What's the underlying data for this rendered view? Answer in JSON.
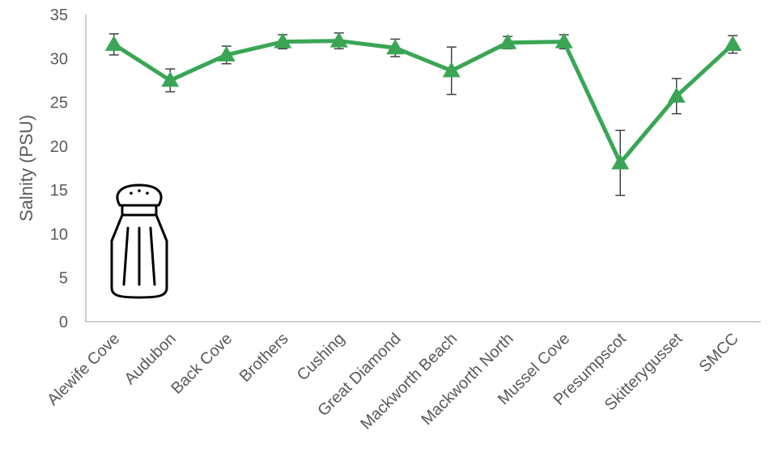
{
  "chart_data": {
    "type": "line",
    "title": "",
    "xlabel": "",
    "ylabel": "Salnity (PSU)",
    "ylim": [
      0,
      35
    ],
    "yticks": [
      0,
      5,
      10,
      15,
      20,
      25,
      30,
      35
    ],
    "grid": false,
    "legend": "none",
    "series_color": "#3aa655",
    "marker": "triangle",
    "categories": [
      "Alewife Cove",
      "Audubon",
      "Back Cove",
      "Brothers",
      "Cushing",
      "Great Diamond",
      "Mackworth Beach",
      "Mackworth North",
      "Mussel Cove",
      "Presumpscot",
      "Skitterygusset",
      "SMCC"
    ],
    "values": [
      31.6,
      27.5,
      30.4,
      31.9,
      32.0,
      31.2,
      28.6,
      31.8,
      31.9,
      18.1,
      25.7,
      31.6
    ],
    "error": [
      1.2,
      1.3,
      1.0,
      0.8,
      0.9,
      1.0,
      2.7,
      0.7,
      0.8,
      3.7,
      2.0,
      1.0
    ],
    "icon": "salt-shaker-icon"
  }
}
